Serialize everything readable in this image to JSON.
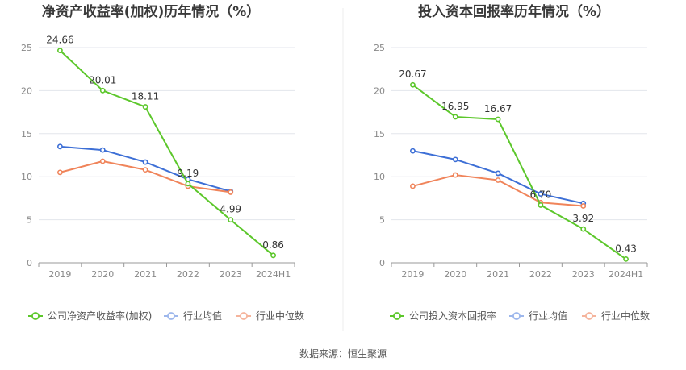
{
  "source": "数据来源：恒生聚源",
  "colors": {
    "company": "#5cc72b",
    "mean": "#3d6fd6",
    "median": "#f0845a",
    "mean_legend": "#9db7ec",
    "median_legend": "#f5b49c",
    "grid": "#e3e6ec",
    "axis": "#999999"
  },
  "chart_data": [
    {
      "type": "line",
      "title": "净资产收益率(加权)历年情况（%）",
      "categories": [
        "2019",
        "2020",
        "2021",
        "2022",
        "2023",
        "2024H1"
      ],
      "ylim": [
        0,
        25
      ],
      "yticks": [
        0,
        5,
        10,
        15,
        20,
        25
      ],
      "grid": true,
      "legend_position": "bottom",
      "series": [
        {
          "name": "公司净资产收益率(加权)",
          "key": "company",
          "values": [
            24.66,
            20.01,
            18.11,
            9.19,
            4.99,
            0.86
          ],
          "labels": [
            "24.66",
            "20.01",
            "18.11",
            "9.19",
            "4.99",
            "0.86"
          ]
        },
        {
          "name": "行业均值",
          "key": "mean",
          "values": [
            13.5,
            13.1,
            11.7,
            9.7,
            8.3,
            null
          ]
        },
        {
          "name": "行业中位数",
          "key": "median",
          "values": [
            10.5,
            11.8,
            10.8,
            8.9,
            8.2,
            null
          ]
        }
      ]
    },
    {
      "type": "line",
      "title": "投入资本回报率历年情况（%）",
      "categories": [
        "2019",
        "2020",
        "2021",
        "2022",
        "2023",
        "2024H1"
      ],
      "ylim": [
        0,
        25
      ],
      "yticks": [
        0,
        5,
        10,
        15,
        20,
        25
      ],
      "grid": true,
      "legend_position": "bottom",
      "series": [
        {
          "name": "公司投入资本回报率",
          "key": "company",
          "values": [
            20.67,
            16.95,
            16.67,
            6.7,
            3.92,
            0.43
          ],
          "labels": [
            "20.67",
            "16.95",
            "16.67",
            "6.70",
            "3.92",
            "0.43"
          ]
        },
        {
          "name": "行业均值",
          "key": "mean",
          "values": [
            13.0,
            12.0,
            10.4,
            8.0,
            6.9,
            null
          ]
        },
        {
          "name": "行业中位数",
          "key": "median",
          "values": [
            8.9,
            10.2,
            9.6,
            7.0,
            6.6,
            null
          ]
        }
      ]
    }
  ]
}
